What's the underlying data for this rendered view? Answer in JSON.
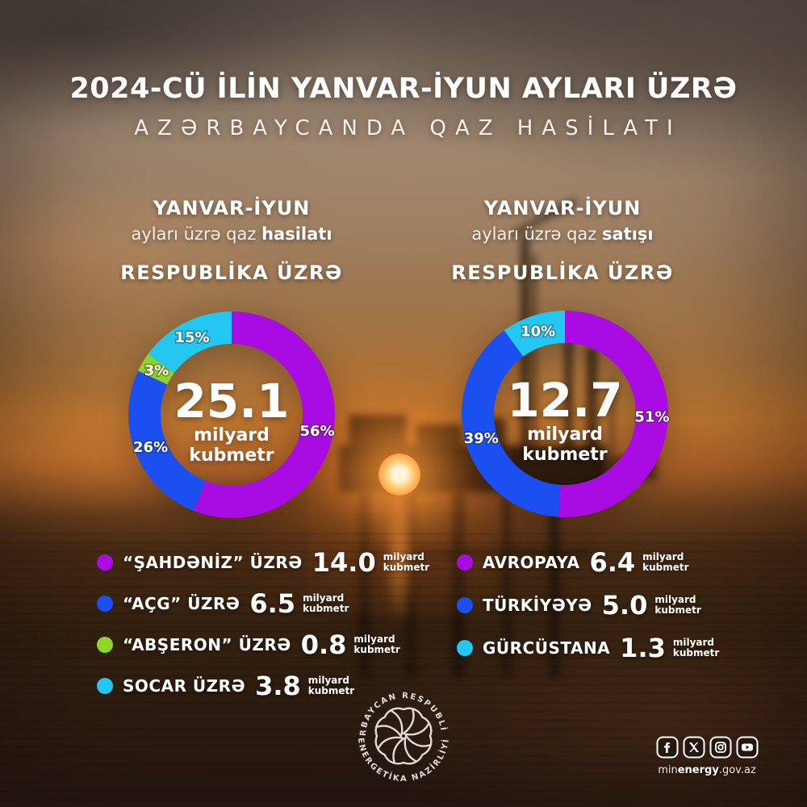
{
  "title": "2024-CÜ İLİN YANVAR-İYUN AYLARI ÜZRƏ",
  "subtitle": "AZƏRBAYCANDA QAZ HASİLATI",
  "panels": [
    {
      "period": "YANVAR-İYUN",
      "caption_text": "ayları üzrə qaz",
      "caption_bold": "hasilatı",
      "scope": "RESPUBLİKA ÜZRƏ"
    },
    {
      "period": "YANVAR-İYUN",
      "caption_text": "ayları üzrə qaz",
      "caption_bold": "satışı",
      "scope": "RESPUBLİKA ÜZRƏ"
    }
  ],
  "unit_lines": [
    "milyard",
    "kubmetr"
  ],
  "chart_data": [
    {
      "type": "pie",
      "title": "YANVAR-İYUN ayları üzrə qaz hasilatı — RESPUBLİKA ÜZRƏ",
      "center_value": "25.1",
      "center_unit_1": "milyard",
      "center_unit_2": "kubmetr",
      "units": "milyard kubmetr",
      "legend_position": "below",
      "series": [
        {
          "name": "“ŞAHDƏNİZ” ÜZRƏ",
          "pct": 56,
          "value_bcm": 14.0,
          "color": "#A80CE2"
        },
        {
          "name": "“AÇG” ÜZRƏ",
          "pct": 26,
          "value_bcm": 6.5,
          "color": "#1C4FEF"
        },
        {
          "name": "“ABŞERON” ÜZRƏ",
          "pct": 3,
          "value_bcm": 0.8,
          "color": "#8FD42A"
        },
        {
          "name": "SOCAR ÜZRƏ",
          "pct": 15,
          "value_bcm": 3.8,
          "color": "#23C7F2"
        }
      ]
    },
    {
      "type": "pie",
      "title": "YANVAR-İYUN ayları üzrə qaz satışı — RESPUBLİKA ÜZRƏ",
      "center_value": "12.7",
      "center_unit_1": "milyard",
      "center_unit_2": "kubmetr",
      "units": "milyard kubmetr",
      "legend_position": "below",
      "series": [
        {
          "name": "AVROPAYA",
          "pct": 51,
          "value_bcm": 6.4,
          "color": "#A80CE2"
        },
        {
          "name": "TÜRKİYƏYƏ",
          "pct": 39,
          "value_bcm": 5.0,
          "color": "#1C4FEF"
        },
        {
          "name": "GÜRCÜSTANA",
          "pct": 10,
          "value_bcm": 1.3,
          "color": "#23C7F2"
        }
      ]
    }
  ],
  "footer": {
    "emblem_top": "AZƏRBAYCAN RESPUBLİKASI",
    "emblem_bottom": "ENERGETİKA NAZİRLİYİ",
    "website_pre": "min",
    "website_bold": "energy",
    "website_post": ".gov.az",
    "social": [
      "facebook",
      "x",
      "instagram",
      "youtube"
    ]
  }
}
